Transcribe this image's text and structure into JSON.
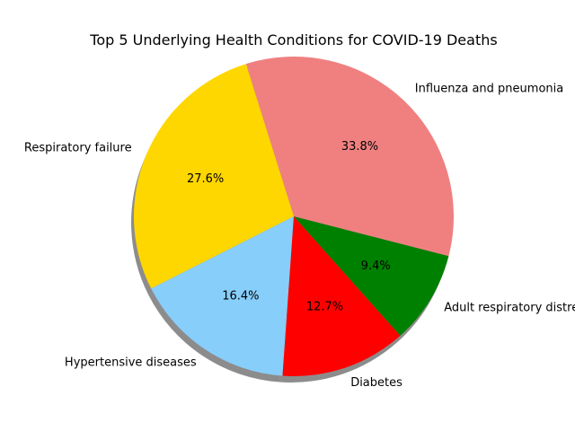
{
  "chart_data": {
    "type": "pie",
    "title": "Top 5 Underlying Health Conditions for COVID-19 Deaths",
    "labels": [
      "Influenza and pneumonia",
      "Respiratory failure",
      "Hypertensive diseases",
      "Diabetes",
      "Adult respiratory distress syndrome"
    ],
    "values": [
      33.8,
      27.6,
      16.4,
      12.7,
      9.4
    ],
    "percent_labels": [
      "33.8%",
      "27.6%",
      "16.4%",
      "12.7%",
      "9.4%"
    ],
    "colors": [
      "#f08080",
      "#ffd700",
      "#87cefa",
      "#ff0000",
      "#008000"
    ],
    "start_angle_deg": -14.4,
    "direction": "counterclockwise",
    "shadow": true,
    "legend": "none"
  }
}
